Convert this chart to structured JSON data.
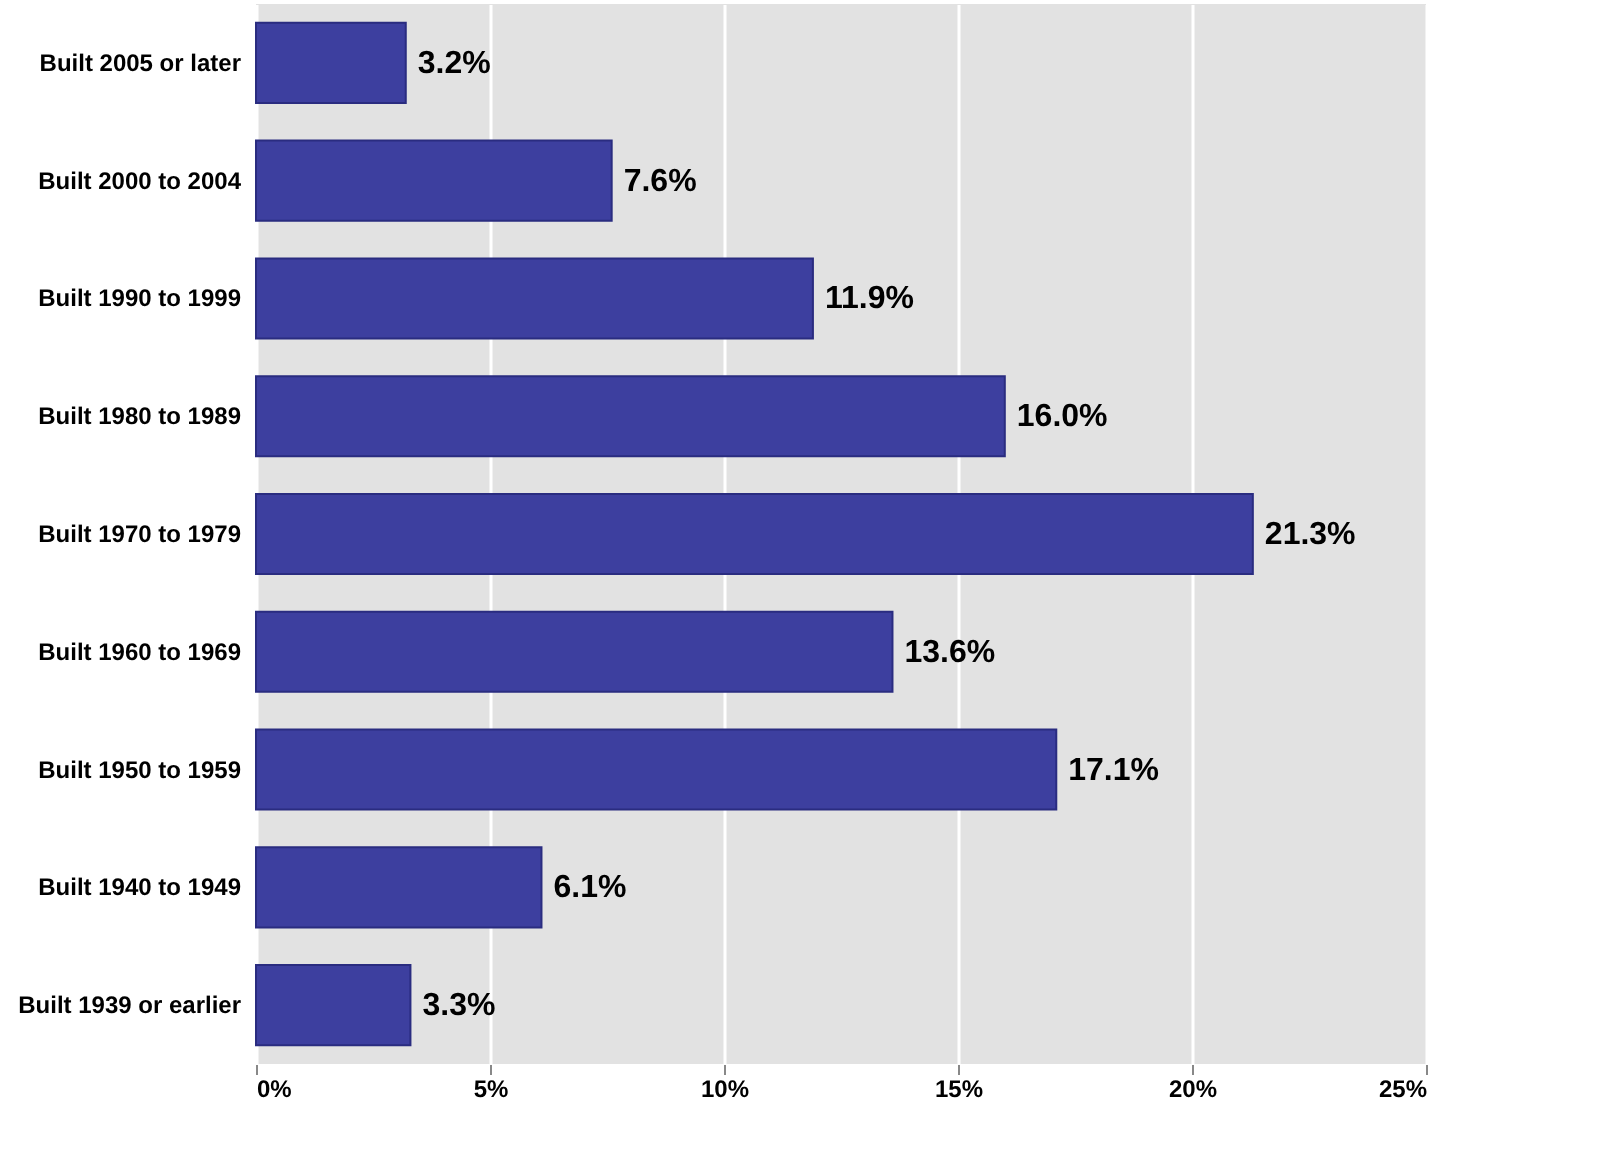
{
  "chart_data": {
    "type": "bar",
    "orientation": "horizontal",
    "categories": [
      "Built 2005 or later",
      "Built 2000 to 2004",
      "Built 1990 to 1999",
      "Built 1980 to 1989",
      "Built 1970 to 1979",
      "Built 1960 to 1969",
      "Built 1950 to 1959",
      "Built 1940 to 1949",
      "Built 1939 or earlier"
    ],
    "values": [
      3.2,
      7.6,
      11.9,
      16.0,
      21.3,
      13.6,
      17.1,
      6.1,
      3.3
    ],
    "value_labels": [
      "3.2%",
      "7.6%",
      "11.9%",
      "16.0%",
      "21.3%",
      "13.6%",
      "17.1%",
      "6.1%",
      "3.3%"
    ],
    "color": "#3d3f9f",
    "xlim": [
      0,
      25
    ],
    "xticks": [
      {
        "value": 0,
        "label": "0%"
      },
      {
        "value": 5,
        "label": "5%"
      },
      {
        "value": 10,
        "label": "10%"
      },
      {
        "value": 15,
        "label": "15%"
      },
      {
        "value": 20,
        "label": "20%"
      },
      {
        "value": 25,
        "label": "25%"
      }
    ],
    "grid": "x"
  }
}
